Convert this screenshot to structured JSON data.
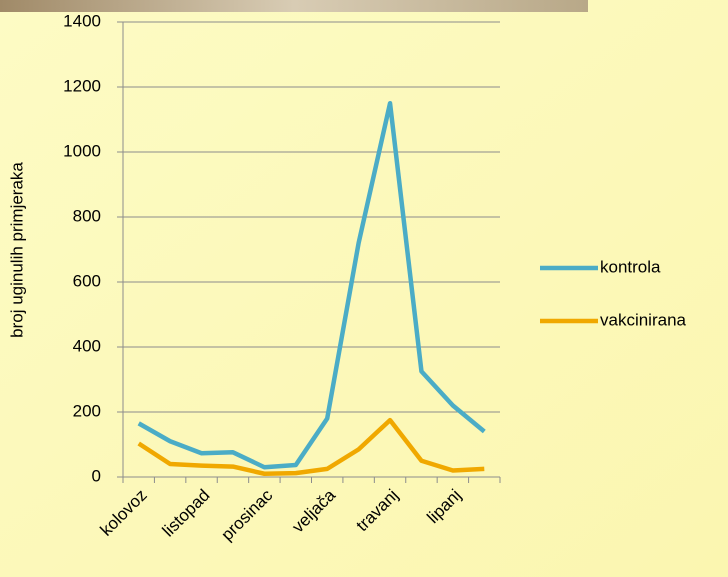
{
  "chart_data": {
    "type": "line",
    "y_label": "broj uginulih primjeraka",
    "categories": [
      "kolovoz",
      null,
      "listopad",
      null,
      "prosinac",
      null,
      "veljača",
      null,
      "travanj",
      null,
      "lipanj",
      null
    ],
    "series": [
      {
        "name": "kontrola",
        "color": "#4bacc6",
        "values": [
          165,
          110,
          73,
          76,
          30,
          37,
          180,
          720,
          1150,
          325,
          220,
          140
        ]
      },
      {
        "name": "vakcinirana",
        "color": "#f0a800",
        "values": [
          103,
          40,
          35,
          32,
          10,
          12,
          25,
          85,
          175,
          50,
          20,
          25
        ]
      }
    ],
    "ylim": [
      0,
      1400
    ],
    "yticks": [
      0,
      200,
      400,
      600,
      800,
      1000,
      1200,
      1400
    ],
    "grid": true,
    "legend": "right"
  }
}
